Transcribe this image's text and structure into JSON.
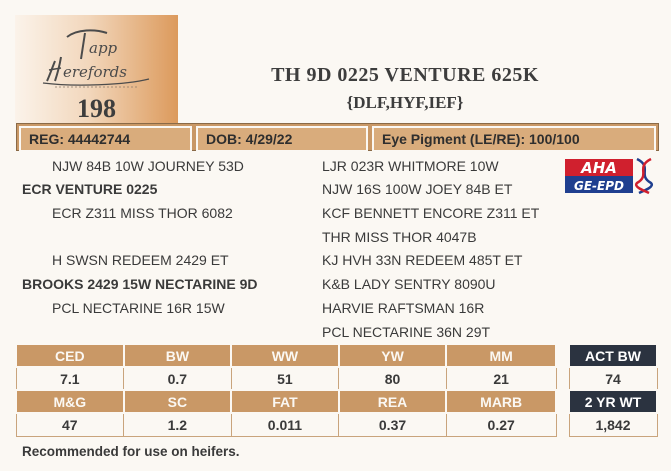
{
  "logo": {
    "brand_text": "Tapp Herefords",
    "lot_number": "198"
  },
  "animal": {
    "name": "TH 9D 0225 VENTURE 625K",
    "genetic_codes": "{DLF,HYF,IEF}"
  },
  "info_bar": {
    "reg": "REG: 44442744",
    "dob": "DOB: 4/29/22",
    "eye_pigment": "Eye Pigment (LE/RE): 100/100"
  },
  "pedigree": {
    "sire_sire": "NJW 84B 10W JOURNEY 53D",
    "sire": "ECR VENTURE 0225",
    "sire_dam": "ECR Z311 MISS THOR 6082",
    "dam_sire": "H SWSN REDEEM 2429 ET",
    "dam": "BROOKS 2429 15W NECTARINE 9D",
    "dam_dam": "PCL NECTARINE 16R 15W",
    "ss_sire": "LJR 023R WHITMORE 10W",
    "ss_dam": "NJW 16S 100W JOEY 84B ET",
    "sd_sire": "KCF BENNETT ENCORE Z311 ET",
    "sd_dam": "THR MISS THOR 4047B",
    "ds_sire": "KJ HVH 33N REDEEM 485T ET",
    "ds_dam": "K&B LADY SENTRY 8090U",
    "dd_sire": "HARVIE RAFTSMAN 16R",
    "dd_dam": "PCL NECTARINE 36N 29T"
  },
  "aha_logo": {
    "top": "AHA",
    "bottom": "GE-EPD"
  },
  "epd": {
    "row1_headers": [
      "CED",
      "BW",
      "WW",
      "YW",
      "MM"
    ],
    "row1_values": [
      "7.1",
      "0.7",
      "51",
      "80",
      "21"
    ],
    "row2_headers": [
      "M&G",
      "SC",
      "FAT",
      "REA",
      "MARB"
    ],
    "row2_values": [
      "47",
      "1.2",
      "0.011",
      "0.37",
      "0.27"
    ]
  },
  "actual": {
    "bw_label": "ACT BW",
    "bw_value": "74",
    "wt_label": "2 YR WT",
    "wt_value": "1,842"
  },
  "footer_note": "Recommended for use on heifers.",
  "colors": {
    "tan": "#c99866",
    "dark_navy": "#2b3340",
    "aha_red": "#d0202e",
    "aha_blue": "#1f3f8f",
    "background": "#fbf8f3"
  }
}
